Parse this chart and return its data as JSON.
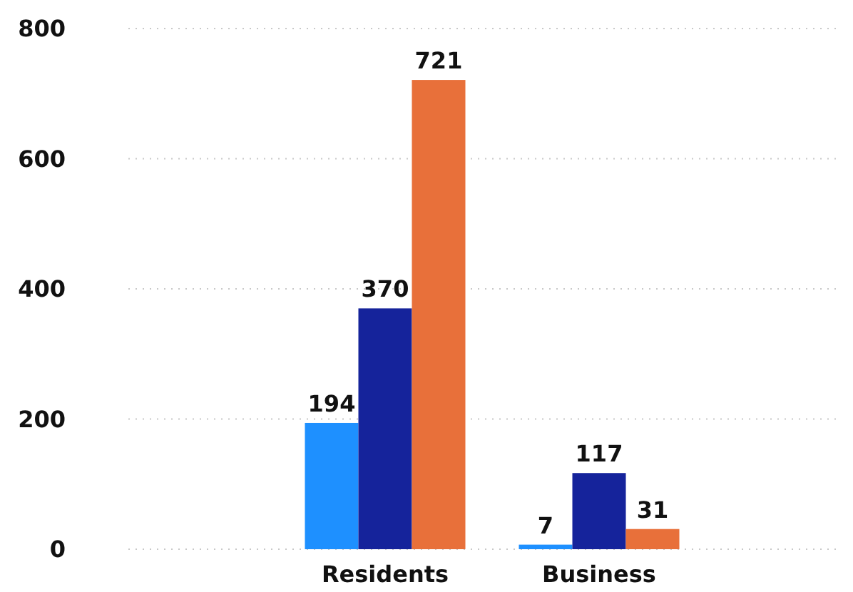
{
  "chart_data": {
    "type": "bar",
    "categories": [
      "Residents",
      "Business"
    ],
    "series": [
      {
        "color": "#1e90ff",
        "values": [
          194,
          7
        ]
      },
      {
        "color": "#15239b",
        "values": [
          370,
          117
        ]
      },
      {
        "color": "#e8703a",
        "values": [
          721,
          31
        ]
      }
    ],
    "ylim": [
      0,
      800
    ],
    "yticks": [
      0,
      200,
      400,
      600,
      800
    ],
    "grid": "y",
    "data_labels": true
  }
}
